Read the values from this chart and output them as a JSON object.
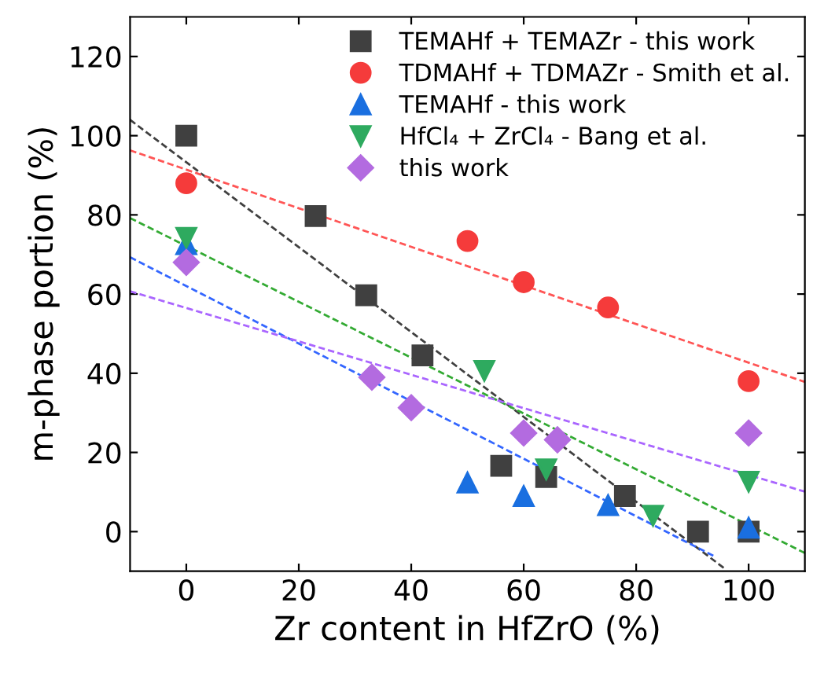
{
  "chart_data": {
    "type": "scatter",
    "xlabel": "Zr content in HfZrO (%)",
    "ylabel": "m-phase portion (%)",
    "xlim": [
      -10,
      110
    ],
    "xticks": [
      0,
      20,
      40,
      60,
      80,
      100
    ],
    "ylim": [
      -10,
      130
    ],
    "yticks": [
      0,
      20,
      40,
      60,
      80,
      100,
      120
    ],
    "grid": false,
    "legend": "top right",
    "series": [
      {
        "name": "TEMAHf + TEMAZr - this work",
        "marker": "square",
        "color": "#404040",
        "x": [
          0,
          23,
          32,
          42,
          56,
          64,
          78,
          91,
          100
        ],
        "values": [
          100,
          79.7,
          59.7,
          44.5,
          16.6,
          13.8,
          9,
          0,
          0
        ]
      },
      {
        "name": "TDMAHf + TDMAZr - Smith et al.",
        "marker": "circle",
        "color": "#f53b3b",
        "x": [
          0,
          50,
          60,
          75,
          100
        ],
        "values": [
          88,
          73.4,
          63,
          56.6,
          38
        ]
      },
      {
        "name": "TEMAHf - this work",
        "marker": "triangle",
        "color": "#1a6fe0",
        "x": [
          0,
          50,
          60,
          75,
          100
        ],
        "values": [
          72.6,
          12.4,
          9,
          6.7,
          1
        ]
      },
      {
        "name": "HfCl₄ + ZrCl₄ - Bang et al.",
        "marker": "triangle_down",
        "color": "#2eaa5f",
        "x": [
          0,
          53,
          64,
          83,
          100
        ],
        "values": [
          74.2,
          40.6,
          15.7,
          4,
          12.6
        ]
      },
      {
        "name": "this work",
        "marker": "diamond",
        "color": "#b36be0",
        "x": [
          0,
          33,
          40,
          60,
          66,
          100
        ],
        "values": [
          68,
          39,
          31.3,
          24.9,
          23.2,
          24.9
        ]
      },
      {
        "type": "line",
        "line_style": "dashed",
        "color": "#404040",
        "x": [
          -10,
          96
        ],
        "values": [
          104,
          -9.6
        ]
      },
      {
        "type": "line",
        "line_style": "dashed",
        "color": "#ff5555",
        "x": [
          -10,
          110
        ],
        "values": [
          96.3,
          37.8
        ]
      },
      {
        "type": "line",
        "line_style": "dashed",
        "color": "#33aa33",
        "x": [
          -10,
          110
        ],
        "values": [
          79.2,
          -5.4
        ]
      },
      {
        "type": "line",
        "line_style": "dashed",
        "color": "#3366ff",
        "x": [
          -10,
          94
        ],
        "values": [
          69.3,
          -6.3
        ]
      },
      {
        "type": "line",
        "line_style": "dashed",
        "color": "#aa66ff",
        "x": [
          -10,
          110
        ],
        "values": [
          60.7,
          10.1
        ]
      }
    ]
  }
}
